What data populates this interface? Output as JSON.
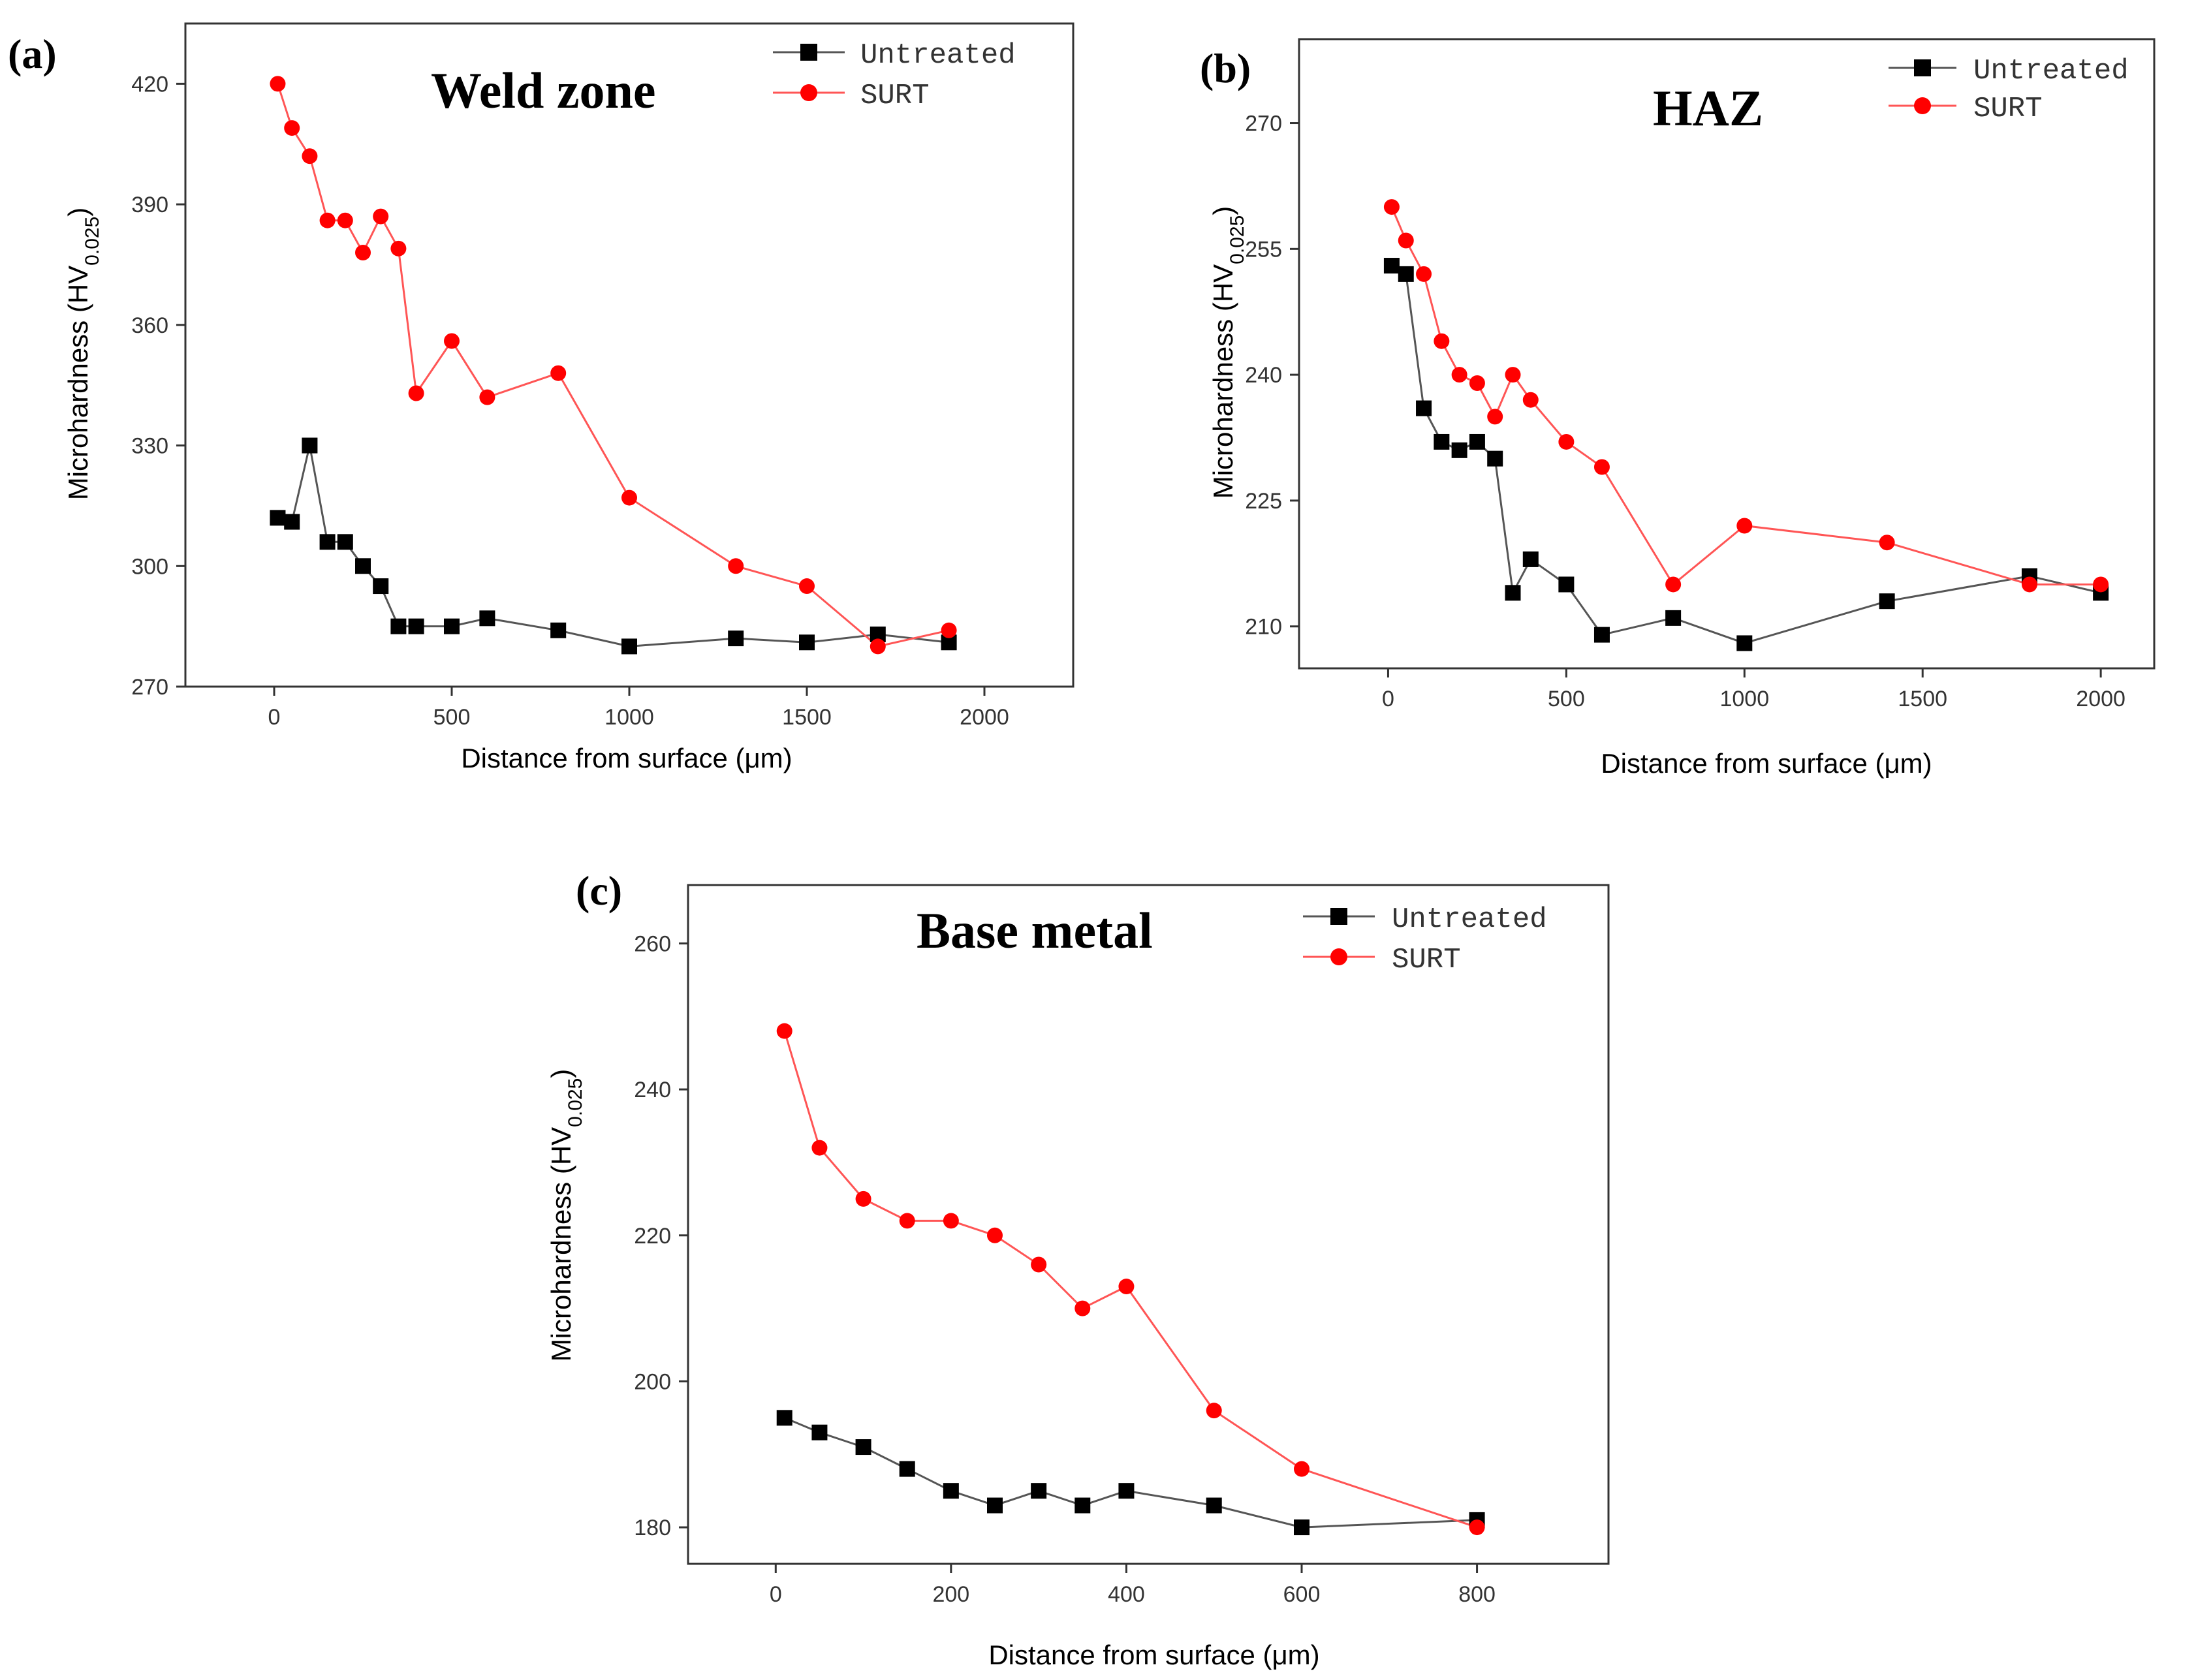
{
  "series_styles": {
    "Untreated": {
      "color": "#000000",
      "line_color": "#555555",
      "marker": "square"
    },
    "SURT": {
      "color": "#ff0000",
      "line_color": "#ff5555",
      "marker": "circle"
    }
  },
  "chart_data": [
    {
      "panel": "(a)",
      "type": "line",
      "title": "Weld zone",
      "xlabel": "Distance from surface (μm)",
      "ylabel": "Microhardness (HV",
      "ylabel_sub": "0.025",
      "ylabel_close": ")",
      "xlim": [
        -250,
        2250
      ],
      "ylim": [
        270,
        435
      ],
      "xticks": [
        0,
        500,
        1000,
        1500,
        2000
      ],
      "yticks": [
        270,
        300,
        330,
        360,
        390,
        420
      ],
      "legend": [
        "Untreated",
        "SURT"
      ],
      "series": [
        {
          "name": "Untreated",
          "x": [
            10,
            50,
            100,
            150,
            200,
            250,
            300,
            350,
            400,
            500,
            600,
            800,
            1000,
            1300,
            1500,
            1700,
            1900
          ],
          "y": [
            312,
            311,
            330,
            306,
            306,
            300,
            295,
            285,
            285,
            285,
            287,
            284,
            280,
            282,
            281,
            283,
            281
          ]
        },
        {
          "name": "SURT",
          "x": [
            10,
            50,
            100,
            150,
            200,
            250,
            300,
            350,
            400,
            500,
            600,
            800,
            1000,
            1300,
            1500,
            1700,
            1900
          ],
          "y": [
            420,
            409,
            402,
            386,
            386,
            378,
            387,
            379,
            343,
            356,
            342,
            348,
            317,
            300,
            295,
            280,
            284
          ]
        }
      ]
    },
    {
      "panel": "(b)",
      "type": "line",
      "title": "HAZ",
      "xlabel": "Distance from surface (μm)",
      "ylabel": "Microhardness (HV",
      "ylabel_sub": "0.025",
      "ylabel_close": ")",
      "xlim": [
        -250,
        2150
      ],
      "ylim": [
        205,
        280
      ],
      "xticks": [
        0,
        500,
        1000,
        1500,
        2000
      ],
      "yticks": [
        210,
        225,
        240,
        255,
        270
      ],
      "legend": [
        "Untreated",
        "SURT"
      ],
      "series": [
        {
          "name": "Untreated",
          "x": [
            10,
            50,
            100,
            150,
            200,
            250,
            300,
            350,
            400,
            500,
            600,
            800,
            1000,
            1400,
            1800,
            2000
          ],
          "y": [
            253,
            252,
            236,
            232,
            231,
            232,
            230,
            214,
            218,
            215,
            209,
            211,
            208,
            213,
            216,
            214
          ]
        },
        {
          "name": "SURT",
          "x": [
            10,
            50,
            100,
            150,
            200,
            250,
            300,
            350,
            400,
            500,
            600,
            800,
            1000,
            1400,
            1800,
            2000
          ],
          "y": [
            260,
            256,
            252,
            244,
            240,
            239,
            235,
            240,
            237,
            232,
            229,
            215,
            222,
            220,
            215,
            215
          ]
        }
      ]
    },
    {
      "panel": "(c)",
      "type": "line",
      "title": "Base metal",
      "xlabel": "Distance from surface (μm)",
      "ylabel": "Microhardness (HV",
      "ylabel_sub": "0.025",
      "ylabel_close": ")",
      "xlim": [
        -100,
        950
      ],
      "ylim": [
        175,
        268
      ],
      "xticks": [
        0,
        200,
        400,
        600,
        800
      ],
      "yticks": [
        180,
        200,
        220,
        240,
        260
      ],
      "legend": [
        "Untreated",
        "SURT"
      ],
      "series": [
        {
          "name": "Untreated",
          "x": [
            10,
            50,
            100,
            150,
            200,
            250,
            300,
            350,
            400,
            500,
            600,
            800
          ],
          "y": [
            195,
            193,
            191,
            188,
            185,
            183,
            185,
            183,
            185,
            183,
            180,
            181
          ]
        },
        {
          "name": "SURT",
          "x": [
            10,
            50,
            100,
            150,
            200,
            250,
            300,
            350,
            400,
            500,
            600,
            800
          ],
          "y": [
            248,
            232,
            225,
            222,
            222,
            220,
            216,
            210,
            213,
            196,
            188,
            180
          ]
        }
      ]
    }
  ]
}
